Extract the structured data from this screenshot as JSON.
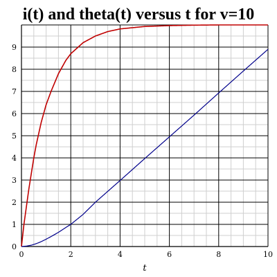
{
  "chart_data": {
    "type": "line",
    "title": "i(t) and theta(t) versus t for v=10",
    "xlabel": "t",
    "ylabel": "",
    "xlim": [
      0,
      10
    ],
    "ylim": [
      0,
      10
    ],
    "x_major_ticks": [
      0,
      2,
      4,
      6,
      8,
      10
    ],
    "y_major_ticks": [
      0,
      1,
      2,
      3,
      4,
      5,
      6,
      7,
      8,
      9
    ],
    "grid": true,
    "series": [
      {
        "color": "#c00000",
        "x": [
          0,
          0.1,
          0.2,
          0.3,
          0.4,
          0.5,
          0.6,
          0.8,
          1.0,
          1.2,
          1.5,
          1.8,
          2.0,
          2.5,
          3.0,
          3.5,
          4.0,
          5.0,
          6.0,
          7.0,
          8.0,
          9.0,
          10.0
        ],
        "y": [
          0,
          1.0,
          1.8,
          2.6,
          3.3,
          4.0,
          4.6,
          5.6,
          6.4,
          7.0,
          7.8,
          8.4,
          8.7,
          9.2,
          9.5,
          9.7,
          9.82,
          9.93,
          9.97,
          9.99,
          10.0,
          10.0,
          10.0
        ]
      },
      {
        "color": "#00008b",
        "x": [
          0,
          0.2,
          0.4,
          0.6,
          0.8,
          1.0,
          1.2,
          1.5,
          1.8,
          2.0,
          2.5,
          3.0,
          4.0,
          5.0,
          6.0,
          7.0,
          8.0,
          9.0,
          10.0
        ],
        "y": [
          0,
          0.02,
          0.06,
          0.13,
          0.22,
          0.33,
          0.45,
          0.64,
          0.86,
          1.0,
          1.45,
          2.0,
          2.98,
          3.97,
          4.95,
          5.93,
          6.93,
          7.92,
          8.9
        ]
      }
    ]
  }
}
